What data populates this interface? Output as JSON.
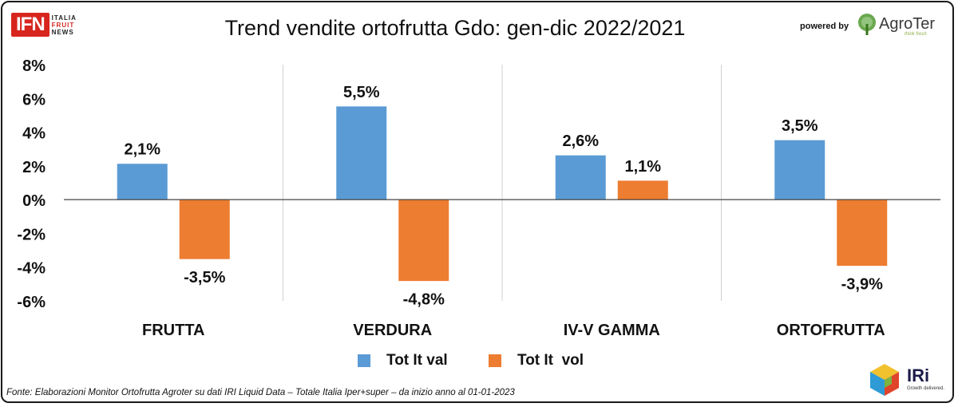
{
  "header": {
    "title": "Trend vendite ortofrutta Gdo: gen-dic 2022/2021",
    "powered_by": "powered by",
    "logo_ifn": {
      "main": "IFN",
      "line1": "ITALIA",
      "line2": "FRUIT",
      "line3": "NEWS"
    },
    "logo_agroter": {
      "name": "AgroTer",
      "tagline": "think fresh"
    }
  },
  "chart_data": {
    "type": "bar",
    "title": "Trend vendite ortofrutta Gdo: gen-dic 2022/2021",
    "categories": [
      "FRUTTA",
      "VERDURA",
      "IV-V GAMMA",
      "ORTOFRUTTA"
    ],
    "series": [
      {
        "name": "Tot It val",
        "values": [
          2.1,
          5.5,
          2.6,
          3.5
        ],
        "labels": [
          "2,1%",
          "5,5%",
          "2,6%",
          "3,5%"
        ],
        "color": "#5b9bd5"
      },
      {
        "name": "Tot It  vol",
        "values": [
          -3.5,
          -4.8,
          1.1,
          -3.9
        ],
        "labels": [
          "-3,5%",
          "-4,8%",
          "1,1%",
          "-3,9%"
        ],
        "color": "#ed7d31"
      }
    ],
    "ylim": [
      -6,
      8
    ],
    "yticks": [
      8,
      6,
      4,
      2,
      0,
      -2,
      -4,
      -6
    ],
    "ytick_labels": [
      "8%",
      "6%",
      "4%",
      "2%",
      "0%",
      "-2%",
      "-4%",
      "-6%"
    ],
    "grid": "vertical category separators",
    "legend": "bottom-center"
  },
  "footer": {
    "source": "Fonte: Elaborazioni Monitor Ortofrutta Agroter su dati IRI Liquid Data – Totale Italia Iper+super –  da inizio anno al 01-01-2023",
    "logo_iri": {
      "name": "IRi",
      "tagline": "Growth delivered."
    }
  }
}
